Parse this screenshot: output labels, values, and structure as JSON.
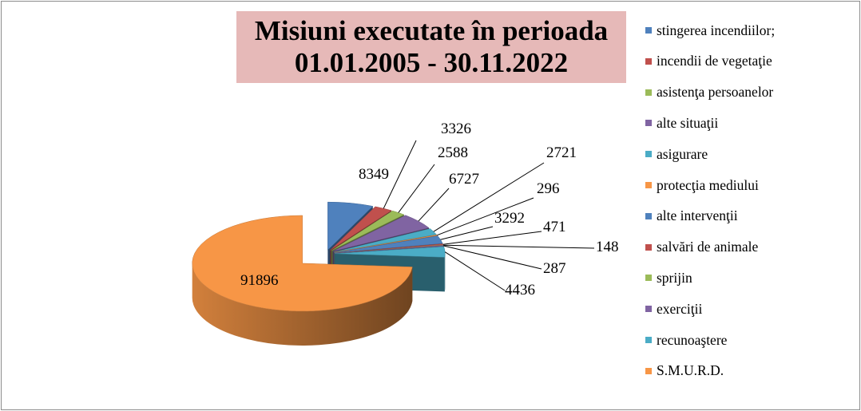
{
  "chart_data": {
    "type": "pie",
    "title_lines": [
      "Misiuni executate în perioada",
      "01.01.2005 - 30.11.2022"
    ],
    "legend_position": "right",
    "categories": [
      "stingerea incendiilor;",
      "incendii de vegetaţie",
      "asistenţa persoanelor",
      "alte situaţii",
      "asigurare",
      "protecţia mediului",
      "alte intervenţii",
      "salvări de animale",
      "sprijin",
      "exerciţii",
      "recunoaştere",
      "S.M.U.R.D."
    ],
    "values": [
      8349,
      3326,
      2588,
      6727,
      2721,
      296,
      3292,
      471,
      148,
      287,
      4436,
      91896
    ],
    "value_labels": [
      "8349",
      "3326",
      "2588",
      "6727",
      "2721",
      "296",
      "3292",
      "471",
      "148",
      "287",
      "4436",
      "91896"
    ],
    "colors": [
      "#4f81bd",
      "#c0504d",
      "#9bbb59",
      "#8064a2",
      "#4bacc6",
      "#f79646",
      "#4f81bd",
      "#c0504d",
      "#9bbb59",
      "#8064a2",
      "#4bacc6",
      "#f79646"
    ]
  }
}
